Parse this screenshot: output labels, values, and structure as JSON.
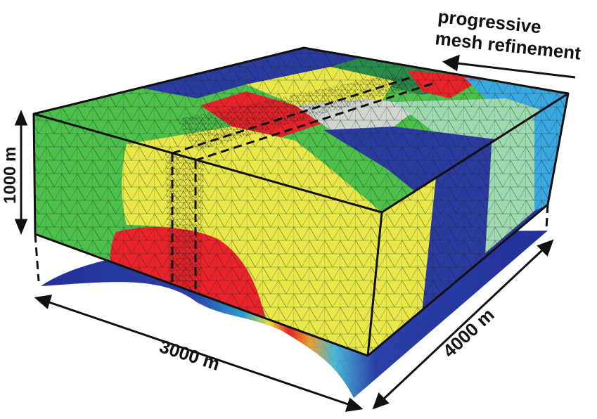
{
  "labels": {
    "refinement_line1": "progressive",
    "refinement_line2": "mesh refinement",
    "height": "1000 m",
    "width": "3000 m",
    "depth": "4000 m"
  },
  "colors": {
    "green": "#4cc04a",
    "yellow": "#e9e84a",
    "red": "#e8232a",
    "blue": "#2a3a9e",
    "light_blue": "#3aa8e0",
    "pale_green": "#9ed9b0",
    "mesh_line": "#1a1a1a"
  }
}
